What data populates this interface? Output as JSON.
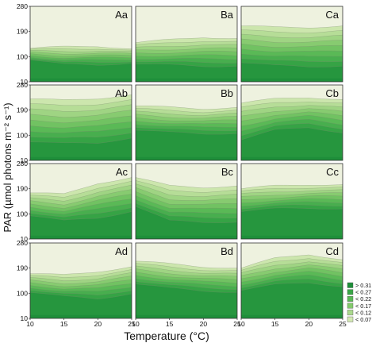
{
  "chart_data": {
    "type": "contour",
    "xlabel": "Temperature (°C)",
    "ylabel": "PAR (µmol photons m⁻² s⁻¹)",
    "xlim": [
      10,
      25
    ],
    "ylim": [
      10,
      280
    ],
    "x_ticks": [
      10,
      15,
      20,
      25
    ],
    "y_ticks": [
      10,
      100,
      190,
      280
    ],
    "grid": false,
    "legend_position": "bottom-right",
    "colors": [
      "#1e8f3a",
      "#3aa647",
      "#5ab956",
      "#82c96c",
      "#abd98d",
      "#d3e8b3",
      "#eef2df"
    ],
    "legend": [
      {
        "label": "> 0.31",
        "color": "#1e8f3a"
      },
      {
        "label": "< 0.27",
        "color": "#3aa647"
      },
      {
        "label": "< 0.22",
        "color": "#5ab956"
      },
      {
        "label": "< 0.17",
        "color": "#82c96c"
      },
      {
        "label": "< 0.12",
        "color": "#abd98d"
      },
      {
        "label": "< 0.07",
        "color": "#d3e8b3"
      }
    ],
    "panels": [
      {
        "label": "Aa",
        "row": 0,
        "col": 0,
        "profile": {
          "x": [
            10,
            15,
            20,
            25
          ],
          "par_low": [
            90,
            72,
            70,
            78
          ],
          "par_high": [
            130,
            135,
            138,
            128
          ]
        }
      },
      {
        "label": "Ba",
        "row": 0,
        "col": 1,
        "profile": {
          "x": [
            10,
            15,
            20,
            25
          ],
          "par_low": [
            75,
            70,
            65,
            68
          ],
          "par_high": [
            150,
            160,
            170,
            165
          ]
        }
      },
      {
        "label": "Ca",
        "row": 0,
        "col": 2,
        "profile": {
          "x": [
            10,
            15,
            20,
            25
          ],
          "par_low": [
            80,
            68,
            64,
            68
          ],
          "par_high": [
            210,
            205,
            205,
            210
          ]
        }
      },
      {
        "label": "Ab",
        "row": 1,
        "col": 0,
        "profile": {
          "x": [
            10,
            15,
            20,
            25
          ],
          "par_low": [
            78,
            70,
            72,
            92
          ],
          "par_high": [
            230,
            225,
            232,
            245
          ]
        }
      },
      {
        "label": "Bb",
        "row": 1,
        "col": 1,
        "profile": {
          "x": [
            10,
            15,
            20,
            25
          ],
          "par_low": [
            120,
            110,
            105,
            108
          ],
          "par_high": [
            205,
            200,
            195,
            200
          ]
        }
      },
      {
        "label": "Cb",
        "row": 1,
        "col": 2,
        "profile": {
          "x": [
            10,
            15,
            20,
            25
          ],
          "par_low": [
            85,
            118,
            128,
            110
          ],
          "par_high": [
            215,
            230,
            236,
            228
          ]
        }
      },
      {
        "label": "Ac",
        "row": 2,
        "col": 0,
        "profile": {
          "x": [
            10,
            15,
            20,
            25
          ],
          "par_low": [
            95,
            75,
            85,
            110
          ],
          "par_high": [
            175,
            170,
            210,
            230
          ]
        }
      },
      {
        "label": "Bc",
        "row": 2,
        "col": 1,
        "profile": {
          "x": [
            10,
            15,
            20,
            25
          ],
          "par_low": [
            128,
            75,
            70,
            72
          ],
          "par_high": [
            230,
            200,
            195,
            200
          ]
        }
      },
      {
        "label": "Cc",
        "row": 2,
        "col": 2,
        "profile": {
          "x": [
            10,
            15,
            20,
            25
          ],
          "par_low": [
            110,
            118,
            120,
            120
          ],
          "par_high": [
            190,
            200,
            205,
            205
          ]
        }
      },
      {
        "label": "Ad",
        "row": 3,
        "col": 0,
        "profile": {
          "x": [
            10,
            15,
            20,
            25
          ],
          "par_low": [
            105,
            88,
            80,
            100
          ],
          "par_high": [
            170,
            165,
            178,
            195
          ]
        }
      },
      {
        "label": "Bd",
        "row": 3,
        "col": 1,
        "profile": {
          "x": [
            10,
            15,
            20,
            25
          ],
          "par_low": [
            135,
            118,
            108,
            105
          ],
          "par_high": [
            215,
            205,
            195,
            190
          ]
        }
      },
      {
        "label": "Cd",
        "row": 3,
        "col": 2,
        "profile": {
          "x": [
            10,
            15,
            20,
            25
          ],
          "par_low": [
            112,
            130,
            138,
            125
          ],
          "par_high": [
            190,
            225,
            240,
            220
          ]
        }
      }
    ]
  }
}
